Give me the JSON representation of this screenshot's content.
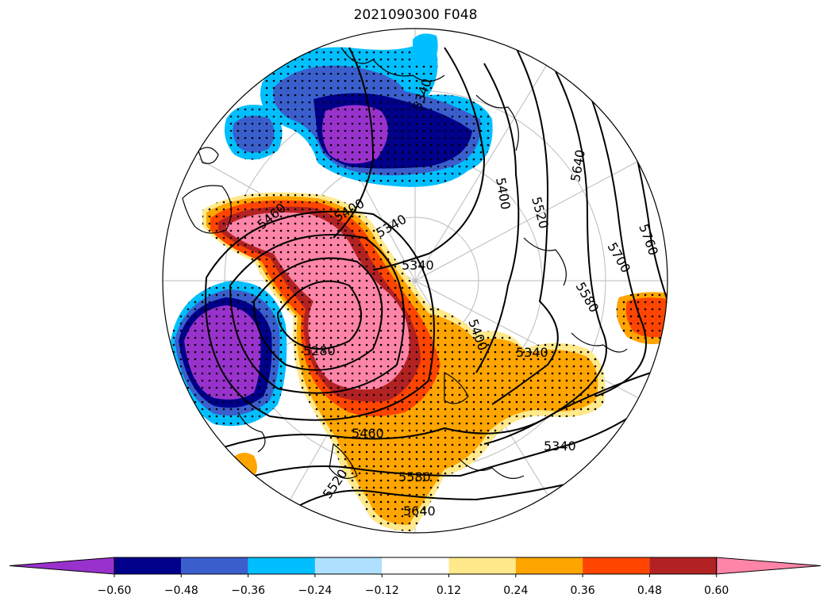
{
  "title": "2021090300 F048",
  "contour_labels": [
    "5340",
    "5400",
    "5460",
    "5520",
    "5580",
    "5640",
    "5700",
    "5760",
    "5280"
  ],
  "colorbar": {
    "colors": [
      "#9932CC",
      "#00008B",
      "#3A5FCD",
      "#00BFFF",
      "#B0E0FF",
      "#FFFFFF",
      "#FFE98A",
      "#FFA500",
      "#FF4500",
      "#B22222",
      "#FF85A8"
    ],
    "ticks": [
      "−0.60",
      "−0.48",
      "−0.36",
      "−0.24",
      "−0.12",
      "0.12",
      "0.24",
      "0.36",
      "0.48",
      "0.60"
    ]
  }
}
